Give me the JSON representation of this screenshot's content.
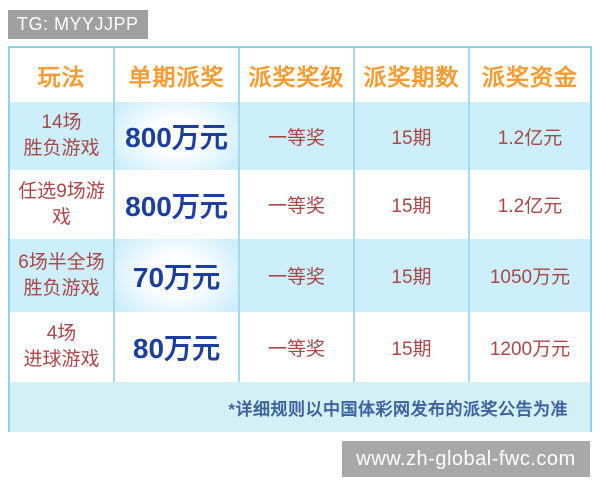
{
  "badge": {
    "text": "TG: MYYJJPP"
  },
  "table": {
    "headers": [
      "玩法",
      "单期派奖",
      "派奖奖级",
      "派奖期数",
      "派奖资金"
    ],
    "rows": [
      {
        "play": "14场\n胜负游戏",
        "prize": "800万元",
        "level": "一等奖",
        "periods": "15期",
        "fund": "1.2亿元"
      },
      {
        "play": "任选9场游戏",
        "prize": "800万元",
        "level": "一等奖",
        "periods": "15期",
        "fund": "1.2亿元"
      },
      {
        "play": "6场半全场\n胜负游戏",
        "prize": "70万元",
        "level": "一等奖",
        "periods": "15期",
        "fund": "1050万元"
      },
      {
        "play": "4场\n进球游戏",
        "prize": "80万元",
        "level": "一等奖",
        "periods": "15期",
        "fund": "1200万元"
      }
    ],
    "note": "*详细规则以中国体彩网发布的派奖公告为准"
  },
  "watermark": {
    "url": "www.zh-global-fwc.com"
  },
  "colors": {
    "header_text": "#f79c33",
    "label_text": "#a84848",
    "prize_text": "#1c3f9e",
    "note_text": "#3e639c",
    "row_highlight_bg": "#cdeefb",
    "note_bg": "#d4f0f7",
    "table_border": "#8fd2f0",
    "badge_bg": "#a0a0a0",
    "urlbar_bg": "#a8a8a8"
  }
}
